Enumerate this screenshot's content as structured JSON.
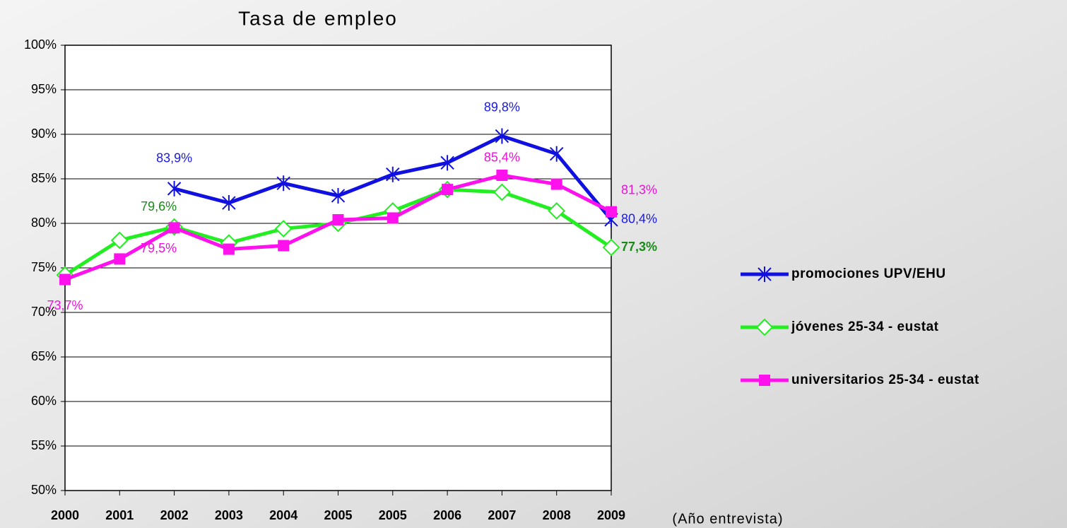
{
  "chart_data": {
    "type": "line",
    "title": "Tasa de empleo",
    "x_label": "(Año entrevista)",
    "categories": [
      "2000",
      "2001",
      "2002",
      "2003",
      "2004",
      "2005",
      "2005",
      "2006",
      "2007",
      "2008",
      "2009"
    ],
    "series": [
      {
        "name": "promociones UPV/EHU",
        "color": "#1010e0",
        "label_color": "#1a1ae0",
        "marker": "asterisk",
        "values": [
          null,
          null,
          83.9,
          82.3,
          84.5,
          83.1,
          85.5,
          86.8,
          89.8,
          87.8,
          80.4
        ],
        "value_labels": [
          null,
          null,
          "83,9%",
          null,
          null,
          null,
          null,
          null,
          "89,8%",
          null,
          "80,4%"
        ]
      },
      {
        "name": "jóvenes 25-34 - eustat",
        "color": "#22ee22",
        "label_color": "#1a8a1a",
        "marker": "diamond",
        "values": [
          74.2,
          78.1,
          79.6,
          77.8,
          79.4,
          80.0,
          81.4,
          83.8,
          83.5,
          81.4,
          77.3
        ],
        "value_labels": [
          null,
          null,
          "79,6%",
          null,
          null,
          null,
          null,
          null,
          null,
          null,
          "77,3%"
        ]
      },
      {
        "name": "universitarios 25-34 - eustat",
        "color": "#ff11ee",
        "label_color": "#ee11dd",
        "marker": "square",
        "values": [
          73.7,
          76.0,
          79.5,
          77.1,
          77.5,
          80.4,
          80.6,
          83.8,
          85.4,
          84.4,
          81.3
        ],
        "value_labels": [
          "73,7%",
          null,
          "79,5%",
          null,
          null,
          null,
          null,
          null,
          "85,4%",
          null,
          "81,3%"
        ]
      }
    ],
    "ylim": [
      50,
      100
    ],
    "yticks": [
      {
        "value": 50,
        "label": "50%"
      },
      {
        "value": 55,
        "label": "55%"
      },
      {
        "value": 60,
        "label": "60%"
      },
      {
        "value": 65,
        "label": "65%"
      },
      {
        "value": 70,
        "label": "70%"
      },
      {
        "value": 75,
        "label": "75%"
      },
      {
        "value": 80,
        "label": "80%"
      },
      {
        "value": 85,
        "label": "85%"
      },
      {
        "value": 90,
        "label": "90%"
      },
      {
        "value": 95,
        "label": "95%"
      },
      {
        "value": 100,
        "label": "100%"
      }
    ],
    "grid": true,
    "legend": "right"
  }
}
